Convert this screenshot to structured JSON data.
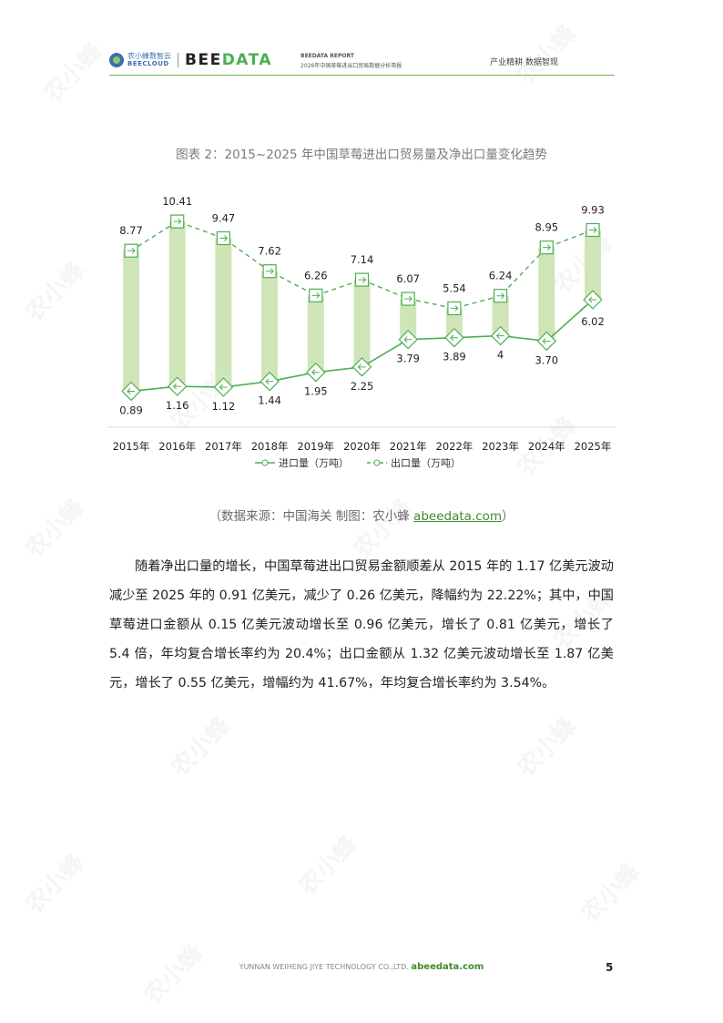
{
  "header": {
    "logo_cn": "农小蜂数智云",
    "logo_en": "BEECLOUD",
    "logo_main_a": "BEE",
    "logo_main_b": "DATA",
    "report_label": "BEEDATA REPORT",
    "report_subtitle": "2026年中国草莓进出口贸易数据分析简报",
    "slogan": "产业精耕  数据智现"
  },
  "chart_title": "图表 2：2015~2025 年中国草莓进出口贸易量及净出口量变化趋势",
  "chart_data": {
    "type": "line",
    "categories": [
      "2015年",
      "2016年",
      "2017年",
      "2018年",
      "2019年",
      "2020年",
      "2021年",
      "2022年",
      "2023年",
      "2024年",
      "2025年"
    ],
    "series": [
      {
        "name": "进口量（万吨）",
        "values": [
          0.89,
          1.16,
          1.12,
          1.44,
          1.95,
          2.25,
          3.79,
          3.89,
          4,
          3.7,
          6.02
        ],
        "labels": [
          "0.89",
          "1.16",
          "1.12",
          "1.44",
          "1.95",
          "2.25",
          "3.79",
          "3.89",
          "4",
          "3.70",
          "6.02"
        ],
        "style": "solid",
        "color": "#4caf50"
      },
      {
        "name": "出口量（万吨）",
        "values": [
          8.77,
          10.41,
          9.47,
          7.62,
          6.26,
          7.14,
          6.07,
          5.54,
          6.24,
          8.95,
          9.93
        ],
        "labels": [
          "8.77",
          "10.41",
          "9.47",
          "7.62",
          "6.26",
          "7.14",
          "6.07",
          "5.54",
          "6.24",
          "8.95",
          "9.93"
        ],
        "style": "dashed",
        "color": "#4caf50"
      }
    ],
    "band_color": "#cfe5b8",
    "legend_position": "bottom"
  },
  "source": {
    "text": "（数据来源：中国海关      制图：农小蜂  ",
    "link": "abeedata.com",
    "close": "）"
  },
  "paragraph": "随着净出口量的增长，中国草莓进出口贸易金额顺差从 2015 年的 1.17 亿美元波动减少至 2025 年的 0.91 亿美元，减少了 0.26 亿美元，降幅约为 22.22%；其中，中国草莓进口金额从 0.15 亿美元波动增长至 0.96 亿美元，增长了 0.81 亿美元，增长了 5.4 倍，年均复合增长率约为 20.4%；出口金额从 1.32 亿美元波动增长至 1.87 亿美元，增长了 0.55 亿美元，增幅约为 41.67%，年均复合增长率约为 3.54%。",
  "footer": {
    "company": "YUNNAN WEIHENG JIYE TECHNOLOGY CO.,LTD. ",
    "site": "abeedata.com"
  },
  "page_number": "5",
  "watermark": "农小蜂"
}
